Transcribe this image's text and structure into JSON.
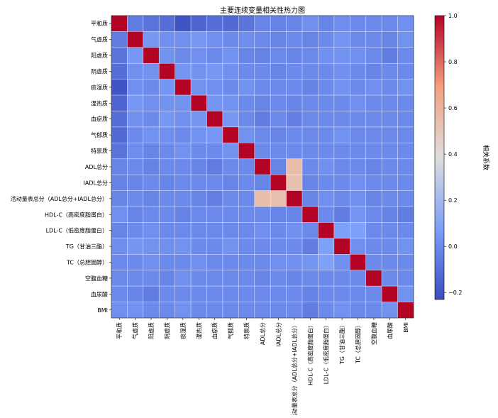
{
  "chart_data": {
    "type": "heatmap",
    "title": "主要连续变量相关性热力图",
    "variables": [
      "平和质",
      "气虚质",
      "阳虚质",
      "阴虚质",
      "痰湿质",
      "湿热质",
      "血瘀质",
      "气郁质",
      "特禀质",
      "ADL总分",
      "IADL总分",
      "活动量表总分（ADL总分+IADL总分）",
      "HDL-C（高密度脂蛋白）",
      "LDL-C（低密度脂蛋白）",
      "TG（甘油三酯）",
      "TC（总胆固醇）",
      "空腹血糖",
      "血尿酸",
      "BMI"
    ],
    "colorbar": {
      "label": "相关系数",
      "vmin": -0.23,
      "vmax": 1.0,
      "ticks": [
        "1.0",
        "0.8",
        "0.6",
        "0.4",
        "0.2",
        "0.0",
        "−0.2"
      ],
      "tick_values": [
        1.0,
        0.8,
        0.6,
        0.4,
        0.2,
        0.0,
        -0.2
      ]
    },
    "colormap": "coolwarm",
    "colors": {
      "low": "#3b4cc0",
      "mid": "#dddddd",
      "high": "#b40426"
    },
    "matrix": [
      [
        1.0,
        -0.05,
        -0.08,
        -0.1,
        -0.2,
        -0.14,
        -0.1,
        -0.12,
        -0.08,
        -0.02,
        -0.03,
        -0.02,
        0.02,
        -0.02,
        0.01,
        0.0,
        0.0,
        0.0,
        0.02
      ],
      [
        -0.05,
        1.0,
        0.05,
        0.02,
        0.02,
        0.05,
        0.02,
        0.0,
        0.01,
        0.0,
        -0.02,
        0.0,
        -0.02,
        0.0,
        0.04,
        0.0,
        0.0,
        -0.02,
        0.03
      ],
      [
        -0.08,
        0.05,
        1.0,
        0.03,
        0.0,
        0.02,
        0.0,
        0.03,
        -0.02,
        -0.03,
        0.0,
        -0.02,
        0.0,
        0.02,
        0.03,
        0.02,
        0.0,
        -0.05,
        0.0
      ],
      [
        -0.1,
        0.02,
        0.03,
        1.0,
        0.04,
        0.03,
        0.05,
        0.02,
        0.0,
        0.0,
        -0.02,
        0.0,
        0.0,
        0.0,
        0.02,
        0.0,
        -0.02,
        0.0,
        0.0
      ],
      [
        -0.2,
        0.02,
        0.0,
        0.04,
        1.0,
        0.03,
        0.02,
        0.0,
        0.03,
        0.0,
        0.0,
        0.0,
        -0.03,
        0.0,
        0.03,
        0.0,
        0.02,
        0.0,
        0.03
      ],
      [
        -0.14,
        0.05,
        0.02,
        0.03,
        0.03,
        1.0,
        0.04,
        0.03,
        0.0,
        -0.02,
        0.0,
        -0.02,
        0.0,
        0.0,
        0.0,
        0.02,
        0.0,
        0.0,
        0.0
      ],
      [
        -0.1,
        0.02,
        0.0,
        0.05,
        0.02,
        0.04,
        1.0,
        0.05,
        0.0,
        -0.05,
        0.0,
        -0.04,
        0.0,
        0.0,
        0.0,
        0.0,
        0.0,
        0.0,
        0.0
      ],
      [
        -0.12,
        0.0,
        0.03,
        0.02,
        0.0,
        0.03,
        0.05,
        1.0,
        0.03,
        0.0,
        -0.02,
        0.0,
        0.0,
        0.0,
        0.03,
        0.0,
        0.0,
        0.0,
        0.0
      ],
      [
        -0.08,
        0.01,
        -0.02,
        0.0,
        0.03,
        0.0,
        0.0,
        0.03,
        1.0,
        0.0,
        0.0,
        0.0,
        0.0,
        0.0,
        0.0,
        0.0,
        0.0,
        0.0,
        0.0
      ],
      [
        -0.02,
        0.0,
        -0.03,
        0.0,
        0.0,
        -0.02,
        -0.05,
        0.0,
        0.0,
        1.0,
        -0.02,
        0.55,
        0.0,
        0.02,
        0.0,
        0.0,
        -0.02,
        0.0,
        0.0
      ],
      [
        -0.03,
        -0.02,
        0.0,
        -0.02,
        0.0,
        0.0,
        0.0,
        -0.02,
        0.0,
        -0.02,
        1.0,
        0.53,
        -0.02,
        0.0,
        0.0,
        0.02,
        0.0,
        0.0,
        0.0
      ],
      [
        -0.02,
        0.0,
        -0.02,
        0.0,
        0.0,
        -0.02,
        -0.04,
        0.0,
        0.0,
        0.55,
        0.53,
        1.0,
        -0.02,
        0.02,
        0.0,
        0.02,
        -0.02,
        0.0,
        0.0
      ],
      [
        0.02,
        -0.02,
        0.0,
        0.0,
        -0.03,
        0.0,
        0.0,
        0.0,
        0.0,
        0.0,
        -0.02,
        -0.02,
        1.0,
        0.0,
        -0.05,
        0.04,
        0.0,
        -0.03,
        -0.05
      ],
      [
        -0.02,
        0.0,
        0.02,
        0.0,
        0.0,
        0.0,
        0.0,
        0.0,
        0.0,
        0.02,
        0.0,
        0.02,
        0.0,
        1.0,
        0.08,
        0.08,
        0.0,
        0.0,
        0.0
      ],
      [
        0.01,
        0.04,
        0.03,
        0.02,
        0.03,
        0.0,
        0.0,
        0.03,
        0.0,
        0.0,
        0.0,
        0.0,
        -0.05,
        0.08,
        1.0,
        0.02,
        0.0,
        0.0,
        0.03
      ],
      [
        0.0,
        0.0,
        0.02,
        0.0,
        0.0,
        0.02,
        0.0,
        0.0,
        0.0,
        0.0,
        0.02,
        0.02,
        0.04,
        0.08,
        0.02,
        1.0,
        0.0,
        0.0,
        0.0
      ],
      [
        0.0,
        0.0,
        0.0,
        -0.02,
        0.02,
        0.0,
        0.0,
        0.0,
        0.0,
        -0.02,
        0.0,
        -0.02,
        0.0,
        0.0,
        0.0,
        0.0,
        1.0,
        0.0,
        0.0
      ],
      [
        0.0,
        -0.02,
        -0.05,
        0.0,
        0.0,
        0.0,
        0.0,
        0.0,
        0.0,
        0.0,
        0.0,
        0.0,
        -0.03,
        0.0,
        0.0,
        0.0,
        0.0,
        1.0,
        0.03
      ],
      [
        0.02,
        0.03,
        0.0,
        0.0,
        0.03,
        0.0,
        0.0,
        0.0,
        0.0,
        0.0,
        0.0,
        0.0,
        -0.05,
        0.0,
        0.03,
        0.0,
        0.0,
        0.03,
        1.0
      ]
    ]
  }
}
